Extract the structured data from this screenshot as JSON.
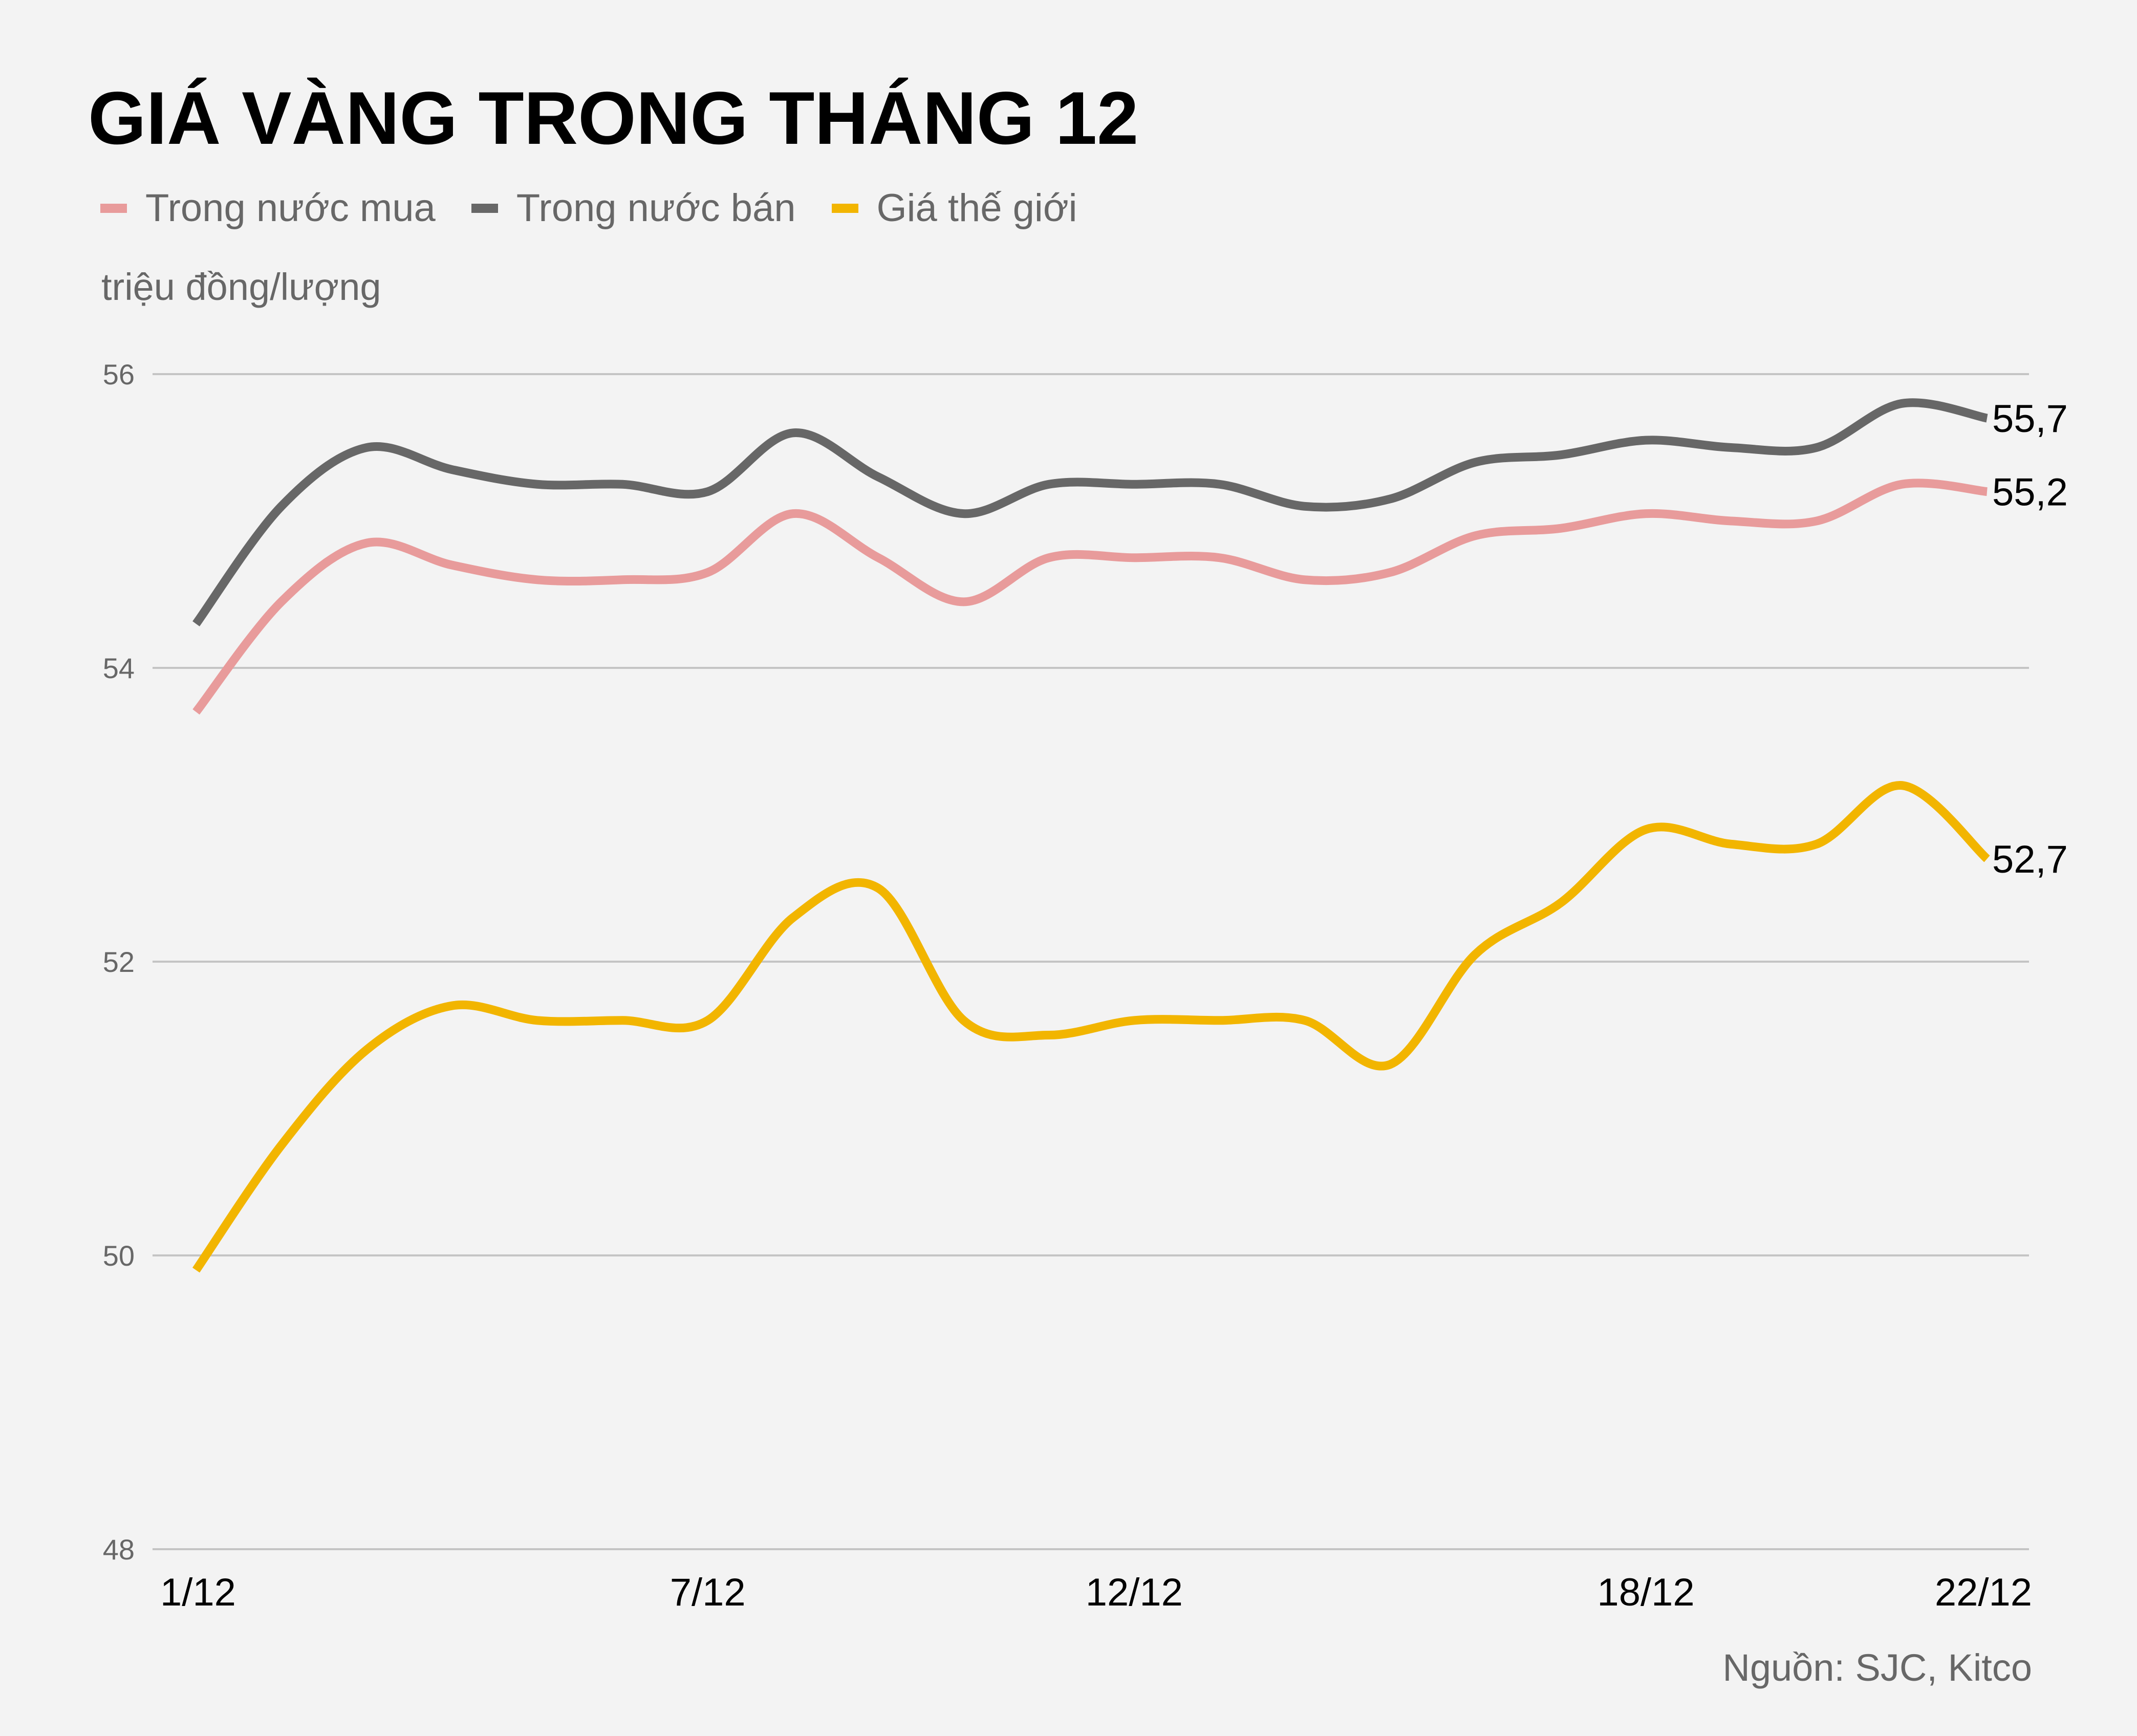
{
  "title": "GIÁ VÀNG TRONG THÁNG 12",
  "unit_label": "triệu đồng/lượng",
  "source": "Nguồn: SJC, Kitco",
  "colors": {
    "background": "#f3f3f3",
    "grid": "#c4c4c4",
    "trong_nuoc_mua": "#e89b9b",
    "trong_nuoc_ban": "#676767",
    "gia_the_gioi": "#f2b500"
  },
  "legend": [
    {
      "label": "Trong nước mua",
      "color": "#e89b9b"
    },
    {
      "label": "Trong nước bán",
      "color": "#676767"
    },
    {
      "label": "Giá thế giới",
      "color": "#f2b500"
    }
  ],
  "chart_data": {
    "type": "line",
    "title": "GIÁ VÀNG TRONG THÁNG 12",
    "xlabel": "",
    "ylabel": "triệu đồng/lượng",
    "ylim": [
      48,
      56
    ],
    "yticks": [
      48,
      50,
      52,
      54,
      56
    ],
    "grid": true,
    "legend_position": "top",
    "x": [
      "1/12",
      "2/12",
      "3/12",
      "4/12",
      "5/12",
      "6/12",
      "7/12",
      "8/12",
      "9/12",
      "10/12",
      "11/12",
      "12/12",
      "13/12",
      "14/12",
      "15/12",
      "16/12",
      "17/12",
      "18/12",
      "19/12",
      "20/12",
      "21/12",
      "22/12"
    ],
    "xtick_labels": [
      {
        "label": "1/12",
        "index": 0
      },
      {
        "label": "7/12",
        "index": 6
      },
      {
        "label": "12/12",
        "index": 11
      },
      {
        "label": "18/12",
        "index": 17
      },
      {
        "label": "22/12",
        "index": 21
      }
    ],
    "series": [
      {
        "name": "Trong nước mua",
        "color": "#e89b9b",
        "values": [
          53.7,
          54.45,
          54.85,
          54.7,
          54.6,
          54.6,
          54.65,
          55.05,
          54.75,
          54.45,
          54.75,
          54.75,
          54.75,
          54.6,
          54.65,
          54.9,
          54.95,
          55.05,
          55.0,
          55.0,
          55.25,
          55.2
        ],
        "end_label": "55,2"
      },
      {
        "name": "Trong nước bán",
        "color": "#676767",
        "values": [
          54.3,
          55.1,
          55.5,
          55.35,
          55.25,
          55.25,
          55.2,
          55.6,
          55.3,
          55.05,
          55.25,
          55.25,
          55.25,
          55.1,
          55.15,
          55.4,
          55.45,
          55.55,
          55.5,
          55.5,
          55.8,
          55.7
        ],
        "end_label": "55,7"
      },
      {
        "name": "Giá thế giới",
        "color": "#f2b500",
        "values": [
          49.9,
          50.75,
          51.4,
          51.7,
          51.6,
          51.6,
          51.6,
          52.3,
          52.5,
          51.6,
          51.5,
          51.6,
          51.6,
          51.6,
          51.3,
          52.05,
          52.4,
          52.9,
          52.8,
          52.8,
          53.2,
          52.7
        ],
        "end_label": "52,7"
      }
    ]
  }
}
